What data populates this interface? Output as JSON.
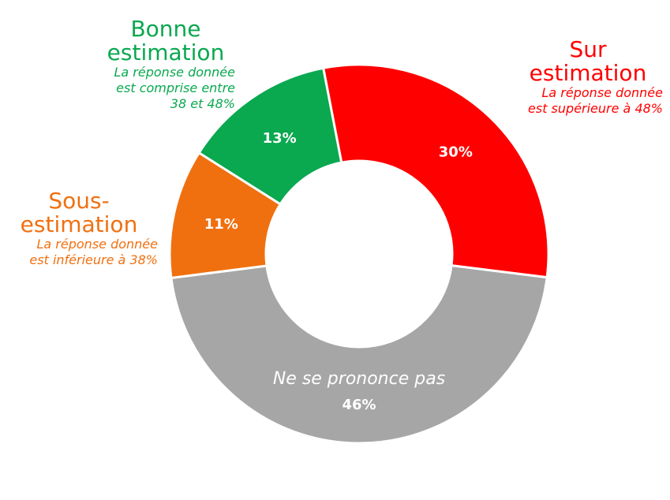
{
  "chart_data": {
    "type": "pie",
    "donut": true,
    "slices": [
      {
        "key": "sur",
        "label": "Sur estimation",
        "description": "La réponse donnée\nest supérieure à 48%",
        "value": 30,
        "value_label": "30%",
        "color": "#ff0000"
      },
      {
        "key": "ne",
        "label": "Ne se prononce pas",
        "description": "",
        "value": 46,
        "value_label": "46%",
        "color": "#a6a6a6"
      },
      {
        "key": "sous",
        "label": "Sous-estimation",
        "description": "La réponse donnée\nest inférieure à 38%",
        "value": 11,
        "value_label": "11%",
        "color": "#f07010"
      },
      {
        "key": "bonne",
        "label": "Bonne estimation",
        "description": "La réponse donnée\nest comprise entre\n38 et 48%",
        "value": 13,
        "value_label": "13%",
        "color": "#0aa84f"
      }
    ],
    "legend": "none"
  },
  "labels": {
    "bonne_title_line1": "Bonne",
    "bonne_title_line2": "estimation",
    "sur_title_line1": "Sur",
    "sur_title_line2": "estimation",
    "sous_title_line1": "Sous-",
    "sous_title_line2": "estimation"
  }
}
